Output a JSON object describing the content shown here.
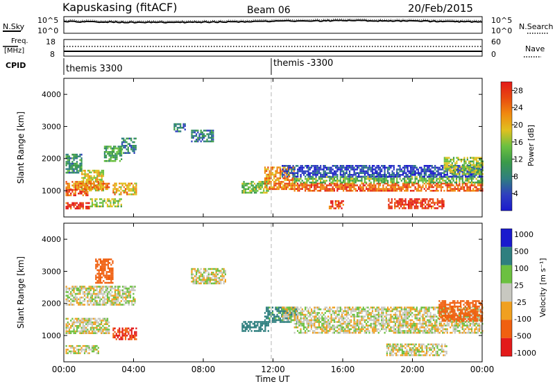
{
  "header": {
    "station": "Kapuskasing (fitACF)",
    "beam": "Beam 06",
    "date": "20/Feb/2015"
  },
  "noise_panel": {
    "left_label": "N.Sky",
    "left_ticks": [
      "10^5",
      "10^0"
    ],
    "right_ticks": [
      "10^5",
      "10^0"
    ],
    "right_label": "N.Search"
  },
  "freq_panel": {
    "left_label_1": "Freq.",
    "left_label_2": "[MHz]",
    "left_ticks": [
      "18",
      "8"
    ],
    "right_ticks": [
      "60",
      "0"
    ],
    "right_label": "Nave"
  },
  "cpid_panel": {
    "label": "CPID",
    "segments": [
      {
        "text": "themis 3300",
        "start_hour": 0
      },
      {
        "text": "themis -3300",
        "start_hour": 12
      }
    ]
  },
  "colors": {
    "power_scale": [
      "#1a1acd",
      "#2f3fbf",
      "#2f7f7f",
      "#3a9a4a",
      "#6cc040",
      "#e0c020",
      "#f08a10",
      "#e84a10",
      "#e31a1a"
    ],
    "velocity_scale": [
      "#1a1acd",
      "#2f7f7f",
      "#6cc040",
      "#bdbdbd",
      "#bdbdbd",
      "#f0a020",
      "#f06010",
      "#e31a1a"
    ],
    "ground_scatter": "#c8c8c0"
  },
  "chart_data": [
    {
      "type": "heatmap",
      "name": "power",
      "ylabel": "Slant Range [km]",
      "yticks": [
        "4000",
        "3000",
        "2000",
        "1000"
      ],
      "ylim": [
        180,
        4500
      ],
      "xlim": [
        0,
        24
      ],
      "colorbar": {
        "label": "Power [dB]",
        "ticks": [
          "28",
          "24",
          "20",
          "16",
          "12",
          "8",
          "4"
        ],
        "range": [
          0,
          30
        ]
      },
      "bands": [
        {
          "t0": 0.1,
          "t1": 1.0,
          "r0": 1580,
          "r1": 2150,
          "value": 10
        },
        {
          "t0": 1.0,
          "t1": 2.3,
          "r0": 1000,
          "r1": 1650,
          "value": 18
        },
        {
          "t0": 2.3,
          "t1": 3.3,
          "r0": 1900,
          "r1": 2400,
          "value": 12
        },
        {
          "t0": 3.3,
          "t1": 4.1,
          "r0": 2150,
          "r1": 2650,
          "value": 9
        },
        {
          "t0": 0.1,
          "t1": 2.6,
          "r0": 1050,
          "r1": 1300,
          "value": 22
        },
        {
          "t0": 0.1,
          "t1": 1.4,
          "r0": 860,
          "r1": 1050,
          "value": 25
        },
        {
          "t0": 2.8,
          "t1": 4.2,
          "r0": 880,
          "r1": 1250,
          "value": 20
        },
        {
          "t0": 0.1,
          "t1": 1.5,
          "r0": 420,
          "r1": 640,
          "value": 27
        },
        {
          "t0": 1.5,
          "t1": 3.3,
          "r0": 520,
          "r1": 760,
          "value": 16
        },
        {
          "t0": 10.2,
          "t1": 11.7,
          "r0": 950,
          "r1": 1300,
          "value": 14
        },
        {
          "t0": 11.5,
          "t1": 13.2,
          "r0": 1050,
          "r1": 1750,
          "value": 22
        },
        {
          "t0": 13.2,
          "t1": 24.0,
          "r0": 980,
          "r1": 1250,
          "value": 24
        },
        {
          "t0": 13.2,
          "t1": 24.0,
          "r0": 1260,
          "r1": 1450,
          "value": 14
        },
        {
          "t0": 12.5,
          "t1": 24.0,
          "r0": 1450,
          "r1": 1800,
          "value": 5
        },
        {
          "t0": 21.8,
          "t1": 24.0,
          "r0": 1500,
          "r1": 2050,
          "value": 16
        },
        {
          "t0": 18.6,
          "t1": 21.8,
          "r0": 450,
          "r1": 760,
          "value": 27
        },
        {
          "t0": 15.2,
          "t1": 16.0,
          "r0": 450,
          "r1": 700,
          "value": 26
        },
        {
          "t0": 6.3,
          "t1": 7.0,
          "r0": 2850,
          "r1": 3100,
          "value": 8
        },
        {
          "t0": 7.3,
          "t1": 8.6,
          "r0": 2550,
          "r1": 2900,
          "value": 9
        }
      ]
    },
    {
      "type": "heatmap",
      "name": "velocity",
      "ylabel": "Slant Range [km]",
      "yticks": [
        "4000",
        "3000",
        "2000",
        "1000"
      ],
      "ylim": [
        180,
        4500
      ],
      "xlim": [
        0,
        24
      ],
      "xlabel": "Time UT",
      "xticks": [
        "00:00",
        "04:00",
        "08:00",
        "12:00",
        "16:00",
        "20:00",
        "00:00"
      ],
      "colorbar": {
        "label": "Velocity [m s⁻¹]",
        "ticks": [
          "1000",
          "500",
          "100",
          "25",
          "-25",
          "-100",
          "-500",
          "-1000"
        ],
        "range": [
          -1000,
          1000
        ]
      },
      "bands": [
        {
          "t0": 0.1,
          "t1": 4.1,
          "r0": 1950,
          "r1": 2550,
          "value": 0
        },
        {
          "t0": 0.1,
          "t1": 2.6,
          "r0": 1050,
          "r1": 1550,
          "value": 0
        },
        {
          "t0": 2.8,
          "t1": 4.2,
          "r0": 900,
          "r1": 1250,
          "value": -500
        },
        {
          "t0": 0.1,
          "t1": 2.0,
          "r0": 420,
          "r1": 700,
          "value": 0
        },
        {
          "t0": 1.8,
          "t1": 2.8,
          "r0": 2650,
          "r1": 3400,
          "value": -300
        },
        {
          "t0": 10.2,
          "t1": 11.7,
          "r0": 1150,
          "r1": 1450,
          "value": 300
        },
        {
          "t0": 11.5,
          "t1": 13.4,
          "r0": 1450,
          "r1": 1900,
          "value": 150
        },
        {
          "t0": 13.2,
          "t1": 24.0,
          "r0": 1100,
          "r1": 1450,
          "value": 0
        },
        {
          "t0": 12.5,
          "t1": 24.0,
          "r0": 1500,
          "r1": 1900,
          "value": 0
        },
        {
          "t0": 21.5,
          "t1": 24.0,
          "r0": 1450,
          "r1": 2100,
          "value": -400
        },
        {
          "t0": 18.5,
          "t1": 22.0,
          "r0": 400,
          "r1": 750,
          "value": 0
        },
        {
          "t0": 7.3,
          "t1": 9.3,
          "r0": 2600,
          "r1": 3100,
          "value": 0
        }
      ]
    }
  ]
}
